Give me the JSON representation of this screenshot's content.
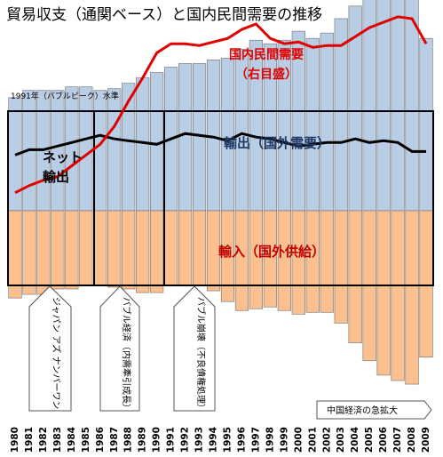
{
  "chart_data": {
    "type": "bar",
    "title": "貿易収支（通関ベース）と国内民間需要の推移",
    "categories": [
      "1980",
      "1981",
      "1982",
      "1983",
      "1984",
      "1985",
      "1986",
      "1987",
      "1988",
      "1989",
      "1990",
      "1991",
      "1992",
      "1993",
      "1994",
      "1995",
      "1996",
      "1997",
      "1998",
      "1999",
      "2000",
      "2001",
      "2002",
      "2003",
      "2004",
      "2005",
      "2006",
      "2007",
      "2008",
      "2009"
    ],
    "base_level_label": "1991年（バブルピーク）水準",
    "series": [
      {
        "name": "輸出（国外需要）",
        "color": "#b9cde5",
        "values": [
          63,
          67,
          67,
          67,
          69,
          69,
          67,
          68,
          71,
          74,
          77,
          80,
          82,
          82,
          84,
          85,
          90,
          95,
          93,
          95,
          100,
          96,
          99,
          107,
          114,
          122,
          132,
          138,
          122,
          96
        ]
      },
      {
        "name": "輸入（国外供給）",
        "color": "#fac090",
        "values": [
          -7,
          -5,
          -5,
          -2,
          -2,
          0,
          0,
          -1,
          -2,
          -4,
          -4,
          0,
          0,
          0,
          -3,
          -9,
          -14,
          -13,
          -12,
          -14,
          -16,
          -15,
          -15,
          -21,
          -32,
          -42,
          -50,
          -53,
          -55,
          -40
        ]
      },
      {
        "name": "ネット輸出",
        "color": "#000000",
        "values": [
          31,
          34,
          34,
          36,
          38,
          40,
          42,
          40,
          39,
          38,
          37,
          40,
          43,
          42,
          41,
          39,
          43,
          41,
          40,
          38,
          36,
          37,
          38,
          38,
          40,
          38,
          39,
          38,
          33,
          33
        ]
      },
      {
        "name": "国内民間需要（右目盛）",
        "color": "#e00000",
        "values": [
          10,
          14,
          17,
          19,
          25,
          31,
          37,
          47,
          61,
          74,
          88,
          93,
          93,
          92,
          94,
          96,
          101,
          104,
          96,
          93,
          94,
          91,
          92,
          92,
          97,
          102,
          105,
          108,
          107,
          93
        ]
      }
    ],
    "annotations": {
      "net_label": [
        "ネット",
        "輸出"
      ],
      "domestic_label": [
        "国内民間需要",
        "（右目盛）"
      ],
      "export_label": "輸出（国外需要）",
      "import_label": "輸入（国外供給）",
      "eras": [
        "ジャパン アズ ナンバーワン",
        "バブル経済（内需牽引成長）",
        "バブル崩壊（不良債権処理）"
      ],
      "china_label": "中国経済の急拡大"
    },
    "yrange": [
      -70,
      140
    ],
    "y_axis_shown": false,
    "grid": false,
    "legend": "none"
  }
}
